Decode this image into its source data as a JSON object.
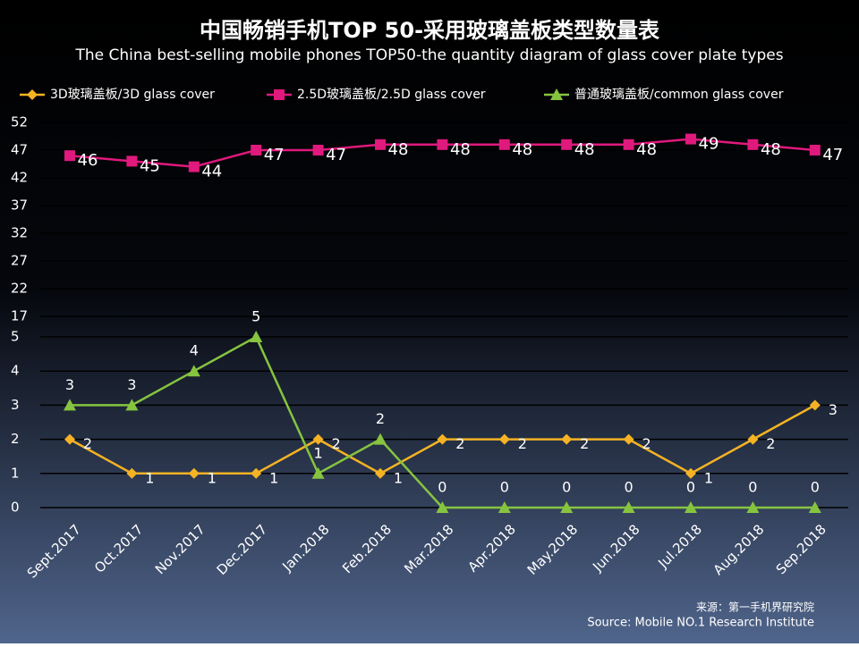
{
  "chart_data": {
    "type": "line",
    "title": "中国畅销手机TOP 50-采用玻璃盖板类型数量表",
    "subtitle": "The China best-selling mobile phones TOP50-the quantity diagram of glass cover plate types",
    "source": [
      "来源：第一手机界研究院",
      "Source: Mobile NO.1 Research Institute"
    ],
    "categories": [
      "Sept.2017",
      "Oct.2017",
      "Nov.2017",
      "Dec.2017",
      "Jan.2018",
      "Feb.2018",
      "Mar.2018",
      "Apr.2018",
      "May.2018",
      "Jun.2018",
      "Jul.2018",
      "Aug.2018",
      "Sep.2018"
    ],
    "series": [
      {
        "name": "3D玻璃盖板/3D glass cover",
        "color": "#f5b324",
        "marker": "diamond",
        "values": [
          2,
          1,
          1,
          1,
          2,
          1,
          2,
          2,
          2,
          2,
          1,
          2,
          3
        ]
      },
      {
        "name": "2.5D玻璃盖板/2.5D glass cover",
        "color": "#e0197d",
        "marker": "square",
        "axis": "y2",
        "values": [
          46,
          45,
          44,
          47,
          47,
          48,
          48,
          48,
          48,
          48,
          49,
          48,
          47
        ]
      },
      {
        "name": "普通玻璃盖板/common glass cover",
        "color": "#86c440",
        "marker": "triangle",
        "values": [
          3,
          3,
          4,
          5,
          1,
          2,
          0,
          0,
          0,
          0,
          0,
          0,
          0
        ]
      }
    ],
    "ylim": [
      0,
      5
    ],
    "yticks": [
      0,
      1,
      2,
      3,
      4,
      5
    ],
    "y2lim": [
      17,
      52
    ],
    "y2ticks": [
      17,
      22,
      27,
      32,
      37,
      42,
      47,
      52
    ],
    "grid": true
  }
}
